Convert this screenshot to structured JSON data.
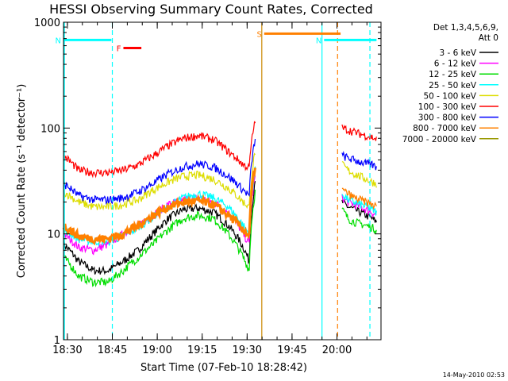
{
  "chart_data": {
    "type": "line",
    "title": "HESSI Observing Summary Count Rates, Corrected",
    "xlabel": "Start Time (07-Feb-10 18:28:42)",
    "ylabel": "Corrected Count Rate (s⁻¹ detector⁻¹)",
    "yscale": "log",
    "ylim": [
      1,
      1000
    ],
    "yticks": [
      {
        "value": 1,
        "label": "1"
      },
      {
        "value": 10,
        "label": "10"
      },
      {
        "value": 100,
        "label": "100"
      },
      {
        "value": 1000,
        "label": "1000"
      }
    ],
    "xlim_minutes": [
      0,
      106
    ],
    "xticks": [
      {
        "minutes": 1.3,
        "label": "18:30"
      },
      {
        "minutes": 16.3,
        "label": "18:45"
      },
      {
        "minutes": 31.3,
        "label": "19:00"
      },
      {
        "minutes": 46.3,
        "label": "19:15"
      },
      {
        "minutes": 61.3,
        "label": "19:30"
      },
      {
        "minutes": 76.3,
        "label": "19:45"
      },
      {
        "minutes": 91.3,
        "label": "20:00"
      }
    ],
    "legend_header": [
      "Det 1,3,4,5,6,9,",
      "Att 0"
    ],
    "legend_position": "right",
    "series": [
      {
        "name": "3 - 6 keV",
        "color": "#000000",
        "x": [
          0,
          5,
          10,
          15,
          20,
          25,
          30,
          35,
          40,
          45,
          50,
          55,
          60,
          62,
          64
        ],
        "y": [
          8,
          5.5,
          4.5,
          4.5,
          5.5,
          7,
          10,
          14,
          17,
          17.5,
          16,
          12,
          7.5,
          5.5,
          30
        ]
      },
      {
        "name": "6 - 12 keV",
        "color": "#ff00ff",
        "x": [
          0,
          5,
          10,
          15,
          20,
          25,
          30,
          35,
          40,
          45,
          50,
          55,
          60,
          62,
          64
        ],
        "y": [
          10,
          7.5,
          7,
          8,
          10,
          12,
          15,
          19,
          21,
          22,
          20,
          16,
          10,
          8,
          35
        ]
      },
      {
        "name": "12 - 25 keV",
        "color": "#00dd00",
        "x": [
          0,
          5,
          10,
          15,
          20,
          25,
          30,
          35,
          40,
          45,
          50,
          55,
          60,
          62,
          64
        ],
        "y": [
          6,
          4,
          3.5,
          3.5,
          4.5,
          6,
          8,
          11,
          14,
          15,
          14,
          10,
          6,
          4.5,
          25
        ]
      },
      {
        "name": "25 - 50 keV",
        "color": "#00ffff",
        "x": [
          0,
          5,
          10,
          15,
          20,
          25,
          30,
          35,
          40,
          45,
          50,
          55,
          60,
          62,
          64
        ],
        "y": [
          11,
          9,
          8.5,
          8.5,
          9.5,
          11.5,
          14.5,
          18,
          22,
          24,
          22,
          18,
          12,
          10,
          40
        ]
      },
      {
        "name": "50 - 100 keV",
        "color": "#dddd00",
        "x": [
          0,
          5,
          10,
          15,
          20,
          25,
          30,
          35,
          40,
          45,
          50,
          55,
          60,
          62,
          64
        ],
        "y": [
          25,
          20,
          18,
          18,
          19,
          21,
          26,
          31,
          35,
          36,
          33,
          27,
          20,
          18,
          60
        ]
      },
      {
        "name": "100 - 300 keV",
        "color": "#ff0000",
        "x": [
          0,
          5,
          10,
          15,
          20,
          25,
          30,
          35,
          40,
          45,
          50,
          55,
          60,
          62,
          64
        ],
        "y": [
          55,
          40,
          38,
          38,
          40,
          45,
          55,
          68,
          80,
          85,
          78,
          60,
          45,
          42,
          120
        ]
      },
      {
        "name": "300 - 800 keV",
        "color": "#0000ff",
        "x": [
          0,
          5,
          10,
          15,
          20,
          25,
          30,
          35,
          40,
          45,
          50,
          55,
          60,
          62,
          64
        ],
        "y": [
          30,
          23,
          21,
          21,
          22,
          25,
          30,
          37,
          43,
          46,
          43,
          35,
          26,
          23,
          80
        ]
      },
      {
        "name": "800 - 7000 keV",
        "color": "#ff8000",
        "x": [
          0,
          5,
          10,
          15,
          20,
          25,
          30,
          35,
          40,
          45,
          50,
          55,
          60,
          62,
          64
        ],
        "y": [
          12,
          9.5,
          9,
          9,
          10,
          12,
          15,
          18,
          20,
          20.5,
          19,
          15,
          11,
          9.5,
          45
        ]
      },
      {
        "name": "7000 - 20000 keV",
        "color": "#999900",
        "x": [],
        "y": []
      }
    ],
    "after_gap": {
      "x": [
        93,
        95,
        97,
        99,
        101,
        103,
        104.5
      ],
      "values": {
        "3 - 6 keV": [
          20,
          18,
          17,
          16,
          15,
          14,
          13
        ],
        "6 - 12 keV": [
          22,
          20,
          19,
          18,
          17,
          16,
          15
        ],
        "12 - 25 keV": [
          17,
          14,
          13,
          12.5,
          12,
          11.5,
          11
        ],
        "25 - 50 keV": [
          24,
          21,
          20,
          19,
          18,
          17,
          16
        ],
        "50 - 100 keV": [
          45,
          40,
          37,
          35,
          33,
          31,
          30
        ],
        "100 - 300 keV": [
          100,
          96,
          92,
          88,
          85,
          82,
          78
        ],
        "300 - 800 keV": [
          55,
          52,
          50,
          48,
          46,
          45,
          43
        ],
        "800 - 7000 keV": [
          26,
          24,
          22,
          21,
          20,
          19,
          18
        ]
      }
    },
    "flag_bars": [
      {
        "label": "N",
        "color": "#00ffff",
        "x_start": 0,
        "x_end": 16,
        "value": 680
      },
      {
        "label": "N",
        "color": "#00ffff",
        "x_start": 87,
        "x_end": 104.5,
        "value": 680
      },
      {
        "label": "F",
        "color": "#ff0000",
        "x_start": 20,
        "x_end": 26,
        "value": 570
      },
      {
        "label": "S",
        "color": "#ff8000",
        "x_start": 67,
        "x_end": 92.5,
        "value": 780
      }
    ],
    "vertical_lines": [
      {
        "minutes": 0.3,
        "color": "#00ffff",
        "style": "solid"
      },
      {
        "minutes": 16.3,
        "color": "#00ffff",
        "style": "dashed"
      },
      {
        "minutes": 66.2,
        "color": "#cc8800",
        "style": "solid"
      },
      {
        "minutes": 86.3,
        "color": "#00ffff",
        "style": "solid"
      },
      {
        "minutes": 91.5,
        "color": "#ff8000",
        "style": "dashed"
      },
      {
        "minutes": 102.3,
        "color": "#00ffff",
        "style": "dashed"
      }
    ],
    "footer_timestamp": "14-May-2010 02:53"
  }
}
